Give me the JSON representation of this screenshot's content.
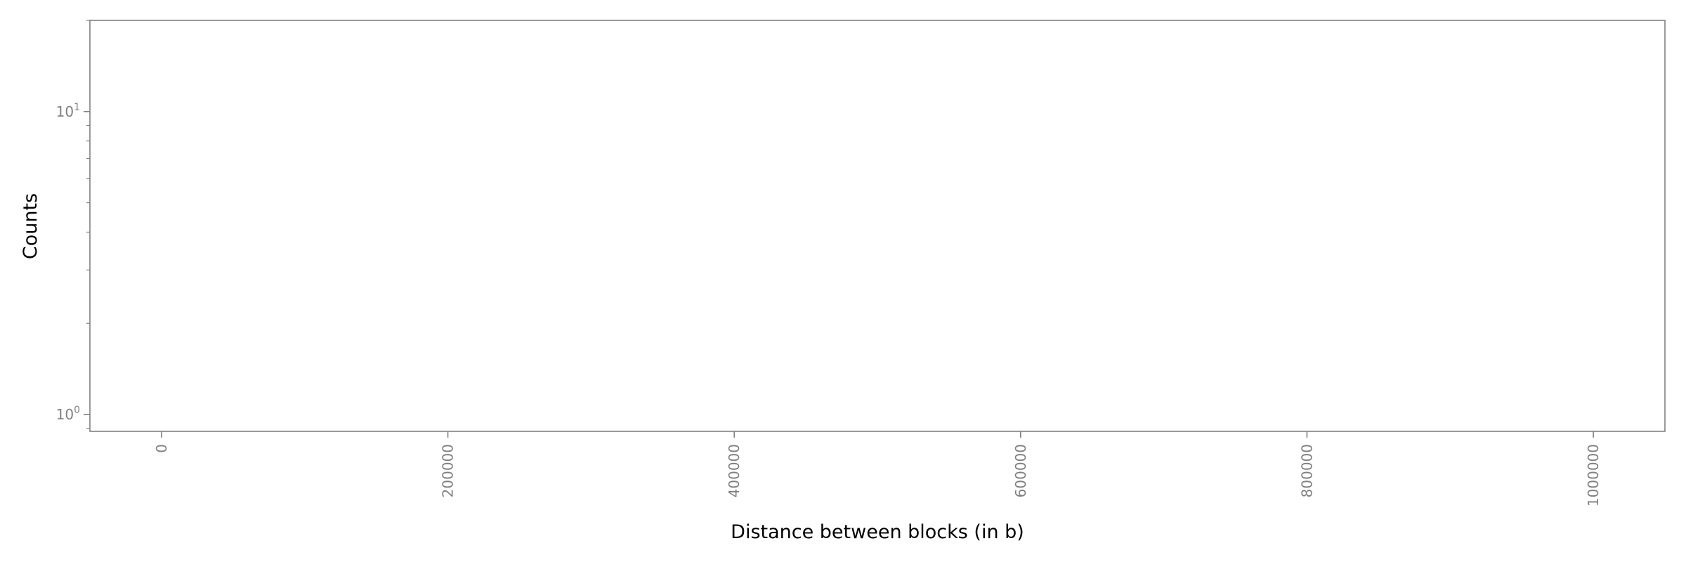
{
  "chart_data": {
    "type": "bar",
    "title": "",
    "xlabel": "Distance between blocks (in b)",
    "ylabel": "Counts",
    "xlim": [
      -50000,
      1050000
    ],
    "ylim": [
      0.88,
      20
    ],
    "y_scale": "log",
    "x_ticks": [
      "0",
      "200000",
      "400000",
      "600000",
      "800000",
      "1000000"
    ],
    "x_tick_values": [
      0,
      200000,
      400000,
      600000,
      800000,
      1000000
    ],
    "y_ticks": [
      {
        "base": "10",
        "exp": "0",
        "value": 1
      },
      {
        "base": "10",
        "exp": "1",
        "value": 10
      }
    ],
    "values": [],
    "grid": false,
    "colors": {
      "frame": "#808080",
      "tick_label": "#808080",
      "axis_title": "#000000"
    }
  }
}
